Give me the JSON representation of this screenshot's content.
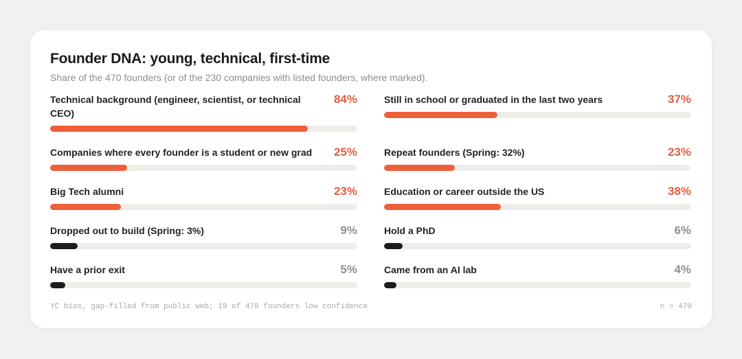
{
  "chart_data": {
    "type": "bar",
    "title": "Founder DNA: young, technical, first-time",
    "subtitle": "Share of the 470 founders (or of the 230 companies with listed founders, where marked).",
    "categories": [
      "Technical background (engineer, scientist, or technical CEO)",
      "Companies where every founder is a student or new grad",
      "Big Tech alumni",
      "Dropped out to build (Spring: 3%)",
      "Have a prior exit",
      "Still in school or graduated in the last two years",
      "Repeat founders (Spring: 32%)",
      "Education or career outside the US",
      "Hold a PhD",
      "Came from an AI lab"
    ],
    "values": [
      84,
      25,
      23,
      9,
      5,
      37,
      23,
      38,
      6,
      4
    ],
    "value_labels": [
      "84%",
      "25%",
      "23%",
      "9%",
      "5%",
      "37%",
      "23%",
      "38%",
      "6%",
      "4%"
    ],
    "colors": [
      "#ef5f3a",
      "#ef5f3a",
      "#ef5f3a",
      "#1c1c1c",
      "#1c1c1c",
      "#ef5f3a",
      "#ef5f3a",
      "#ef5f3a",
      "#1c1c1c",
      "#1c1c1c"
    ],
    "xlim": [
      0,
      100
    ],
    "note": "YC bios, gap-filled from public web; 19 of 470 founders low confidence",
    "sample": "n = 470"
  }
}
